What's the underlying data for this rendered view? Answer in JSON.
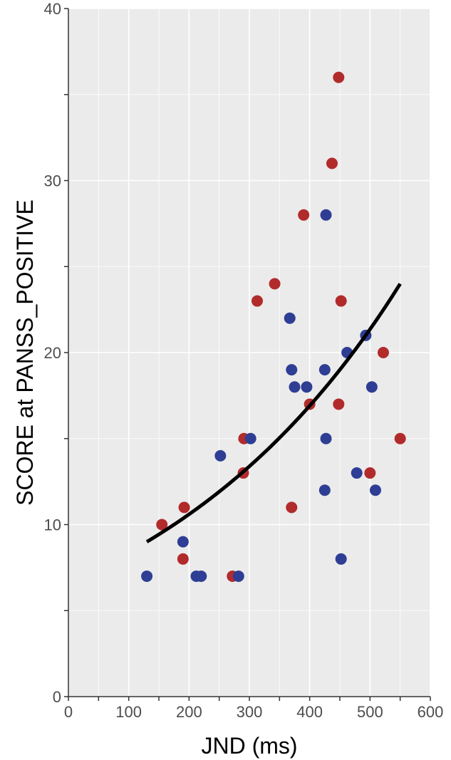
{
  "chart_data": {
    "type": "scatter",
    "title": "",
    "xlabel": "JND (ms)",
    "ylabel": "SCORE at PANSS_POSITIVE",
    "xlim": [
      0,
      600
    ],
    "ylim": [
      0,
      40
    ],
    "x_ticks": [
      0,
      100,
      200,
      300,
      400,
      500,
      600
    ],
    "x_tick_labels": [
      "0",
      "100",
      "200",
      "300",
      "400",
      "500",
      "600"
    ],
    "y_ticks": [
      0,
      10,
      20,
      30,
      40
    ],
    "y_tick_labels": [
      "0",
      "10",
      "20",
      "30",
      "40"
    ],
    "grid": true,
    "legend": "none",
    "colors": {
      "panel": "#ebebeb",
      "grid": "#ffffff",
      "series_red": "#b22b2b",
      "series_blue": "#2e3e94",
      "fit_line": "#000000"
    },
    "series": [
      {
        "name": "red",
        "color": "#b22b2b",
        "points": [
          {
            "x": 155,
            "y": 10
          },
          {
            "x": 192,
            "y": 11
          },
          {
            "x": 190,
            "y": 8
          },
          {
            "x": 272,
            "y": 7
          },
          {
            "x": 291,
            "y": 15
          },
          {
            "x": 290,
            "y": 13
          },
          {
            "x": 313,
            "y": 23
          },
          {
            "x": 342,
            "y": 24
          },
          {
            "x": 390,
            "y": 28
          },
          {
            "x": 370,
            "y": 11
          },
          {
            "x": 400,
            "y": 17
          },
          {
            "x": 437,
            "y": 31
          },
          {
            "x": 448,
            "y": 36
          },
          {
            "x": 452,
            "y": 23
          },
          {
            "x": 448,
            "y": 17
          },
          {
            "x": 500,
            "y": 13
          },
          {
            "x": 522,
            "y": 20
          },
          {
            "x": 550,
            "y": 15
          }
        ]
      },
      {
        "name": "blue",
        "color": "#2e3e94",
        "points": [
          {
            "x": 130,
            "y": 7
          },
          {
            "x": 190,
            "y": 9
          },
          {
            "x": 212,
            "y": 7
          },
          {
            "x": 220,
            "y": 7
          },
          {
            "x": 282,
            "y": 7
          },
          {
            "x": 252,
            "y": 14
          },
          {
            "x": 302,
            "y": 15
          },
          {
            "x": 367,
            "y": 22
          },
          {
            "x": 370,
            "y": 19
          },
          {
            "x": 375,
            "y": 18
          },
          {
            "x": 395,
            "y": 18
          },
          {
            "x": 427,
            "y": 28
          },
          {
            "x": 425,
            "y": 19
          },
          {
            "x": 427,
            "y": 15
          },
          {
            "x": 425,
            "y": 12
          },
          {
            "x": 462,
            "y": 20
          },
          {
            "x": 452,
            "y": 8
          },
          {
            "x": 478,
            "y": 13
          },
          {
            "x": 493,
            "y": 21
          },
          {
            "x": 503,
            "y": 18
          },
          {
            "x": 509,
            "y": 12
          }
        ]
      }
    ],
    "fit_line": {
      "type": "exponential",
      "x_range": [
        130,
        550
      ],
      "y_start": 9,
      "y_end": 24
    }
  }
}
